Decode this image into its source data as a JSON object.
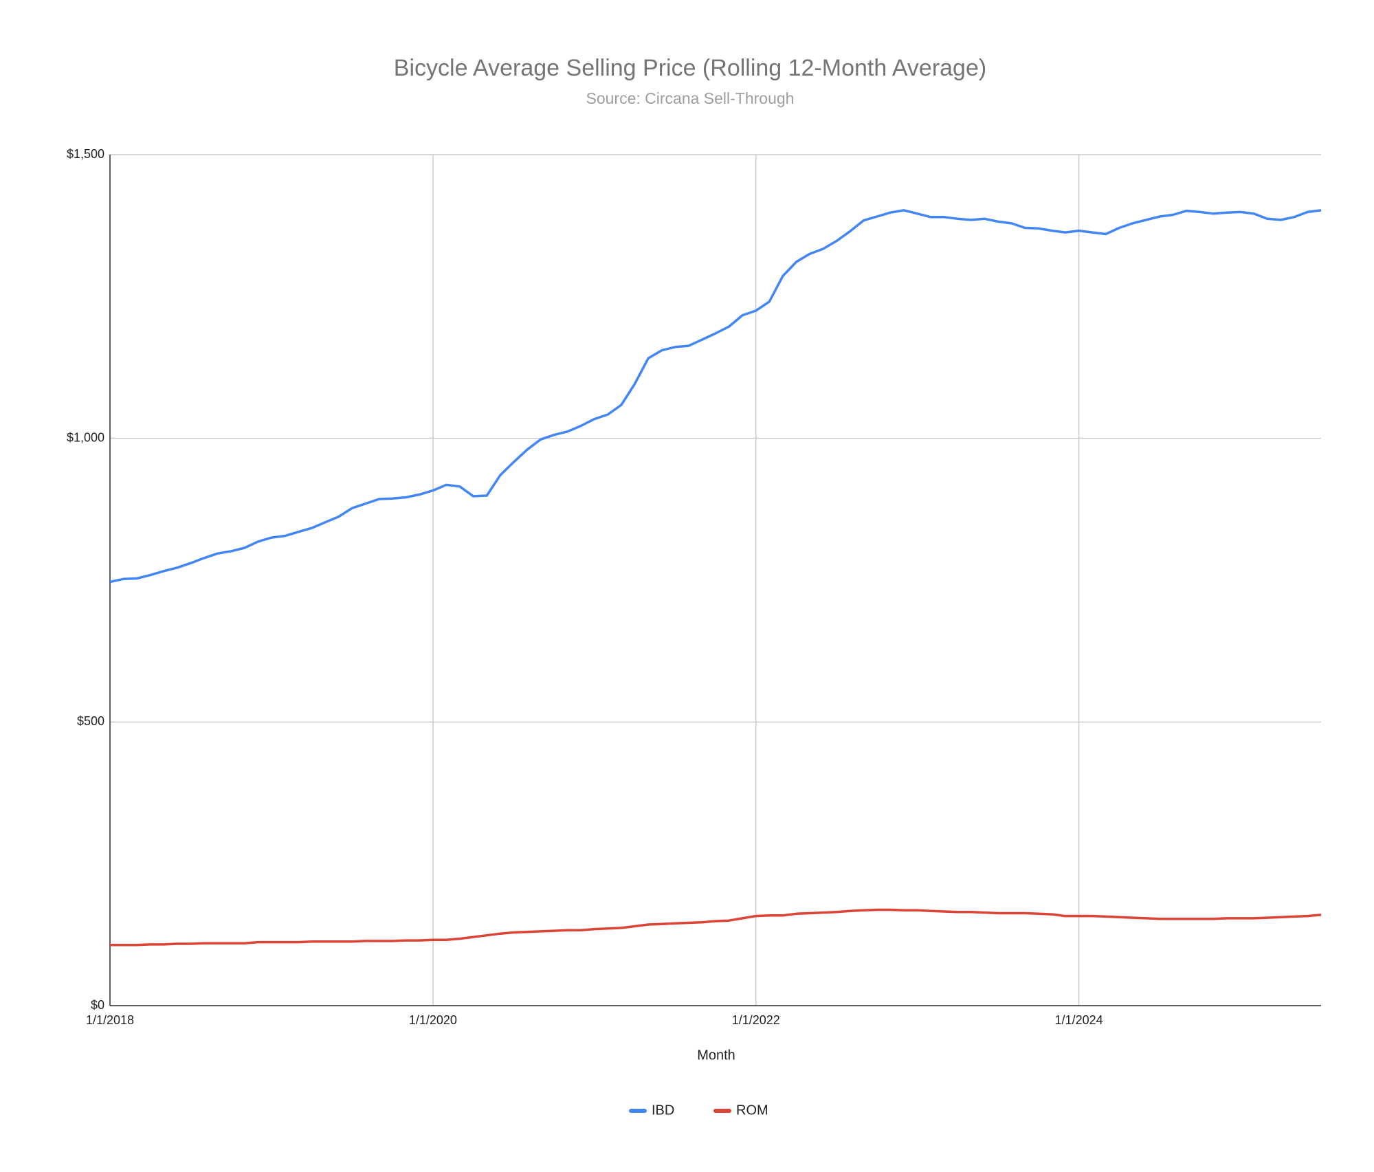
{
  "chart_data": {
    "type": "line",
    "title": "Bicycle Average Selling Price (Rolling 12-Month Average)",
    "subtitle": "Source: Circana Sell-Through",
    "x_label": "Month",
    "x": [
      "1/1/2018",
      "2/1/2018",
      "3/1/2018",
      "4/1/2018",
      "5/1/2018",
      "6/1/2018",
      "7/1/2018",
      "8/1/2018",
      "9/1/2018",
      "10/1/2018",
      "11/1/2018",
      "12/1/2018",
      "1/1/2019",
      "2/1/2019",
      "3/1/2019",
      "4/1/2019",
      "5/1/2019",
      "6/1/2019",
      "7/1/2019",
      "8/1/2019",
      "9/1/2019",
      "10/1/2019",
      "11/1/2019",
      "12/1/2019",
      "1/1/2020",
      "2/1/2020",
      "3/1/2020",
      "4/1/2020",
      "5/1/2020",
      "6/1/2020",
      "7/1/2020",
      "8/1/2020",
      "9/1/2020",
      "10/1/2020",
      "11/1/2020",
      "12/1/2020",
      "1/1/2021",
      "2/1/2021",
      "3/1/2021",
      "4/1/2021",
      "5/1/2021",
      "6/1/2021",
      "7/1/2021",
      "8/1/2021",
      "9/1/2021",
      "10/1/2021",
      "11/1/2021",
      "12/1/2021",
      "1/1/2022",
      "2/1/2022",
      "3/1/2022",
      "4/1/2022",
      "5/1/2022",
      "6/1/2022",
      "7/1/2022",
      "8/1/2022",
      "9/1/2022",
      "10/1/2022",
      "11/1/2022",
      "12/1/2022",
      "1/1/2023",
      "2/1/2023",
      "3/1/2023",
      "4/1/2023",
      "5/1/2023",
      "6/1/2023",
      "7/1/2023",
      "8/1/2023",
      "9/1/2023",
      "10/1/2023",
      "11/1/2023",
      "12/1/2023",
      "1/1/2024",
      "2/1/2024",
      "3/1/2024",
      "4/1/2024",
      "5/1/2024",
      "6/1/2024",
      "7/1/2024",
      "8/1/2024",
      "9/1/2024",
      "10/1/2024",
      "11/1/2024",
      "12/1/2024",
      "1/1/2025",
      "2/1/2025",
      "3/1/2025",
      "4/1/2025",
      "5/1/2025",
      "6/1/2025",
      "7/1/2025"
    ],
    "series": [
      {
        "name": "IBD",
        "color": "#4285f4",
        "values": [
          747,
          752,
          753,
          759,
          766,
          772,
          780,
          789,
          797,
          801,
          807,
          818,
          825,
          828,
          835,
          842,
          852,
          862,
          877,
          885,
          893,
          894,
          896,
          901,
          908,
          918,
          915,
          898,
          899,
          935,
          958,
          980,
          998,
          1006,
          1012,
          1022,
          1034,
          1042,
          1059,
          1096,
          1141,
          1155,
          1161,
          1163,
          1174,
          1185,
          1197,
          1217,
          1225,
          1241,
          1286,
          1311,
          1325,
          1334,
          1348,
          1365,
          1384,
          1391,
          1398,
          1402,
          1396,
          1390,
          1390,
          1387,
          1385,
          1387,
          1382,
          1379,
          1371,
          1370,
          1366,
          1363,
          1366,
          1363,
          1360,
          1371,
          1379,
          1385,
          1391,
          1394,
          1401,
          1399,
          1396,
          1398,
          1399,
          1396,
          1387,
          1385,
          1390,
          1399,
          1402
        ]
      },
      {
        "name": "ROM",
        "color": "#db4437",
        "values": [
          107,
          107,
          107,
          108,
          108,
          109,
          109,
          110,
          110,
          110,
          110,
          112,
          112,
          112,
          112,
          113,
          113,
          113,
          113,
          114,
          114,
          114,
          115,
          115,
          116,
          116,
          118,
          121,
          124,
          127,
          129,
          130,
          131,
          132,
          133,
          133,
          135,
          136,
          137,
          140,
          143,
          144,
          145,
          146,
          147,
          149,
          150,
          154,
          158,
          159,
          159,
          162,
          163,
          164,
          165,
          167,
          168,
          169,
          169,
          168,
          168,
          167,
          166,
          165,
          165,
          164,
          163,
          163,
          163,
          162,
          161,
          158,
          158,
          158,
          157,
          156,
          155,
          154,
          153,
          153,
          153,
          153,
          153,
          154,
          154,
          154,
          155,
          156,
          157,
          158,
          160
        ]
      }
    ],
    "xlim": [
      "1/1/2018",
      "7/1/2025"
    ],
    "xticks": [
      "1/1/2018",
      "1/1/2020",
      "1/1/2022",
      "1/1/2024"
    ],
    "ylim": [
      0,
      1500
    ],
    "yticks": [
      {
        "value": 0,
        "label": "$0"
      },
      {
        "value": 500,
        "label": "$500"
      },
      {
        "value": 1000,
        "label": "$1,000"
      },
      {
        "value": 1500,
        "label": "$1,500"
      }
    ],
    "grid": true,
    "legend": "bottom"
  }
}
